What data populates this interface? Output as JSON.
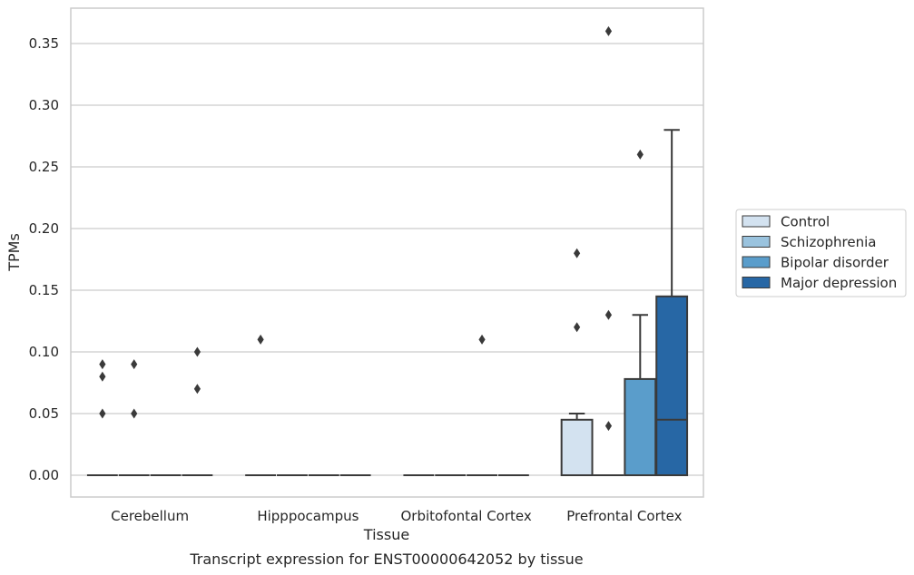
{
  "caption": "Transcript expression for ENST00000642052 by tissue",
  "chart_data": {
    "type": "box",
    "xlabel": "Tissue",
    "ylabel": "TPMs",
    "ylim": [
      -0.018,
      0.378
    ],
    "yticks": [
      "0.00",
      "0.05",
      "0.10",
      "0.15",
      "0.20",
      "0.25",
      "0.30",
      "0.35"
    ],
    "grid": "horizontal",
    "legend_position": "right",
    "categories": [
      "Cerebellum",
      "Hipppocampus",
      "Orbitofontal Cortex",
      "Prefrontal Cortex"
    ],
    "series": [
      {
        "name": "Control",
        "color": "#d3e2f0",
        "boxes": [
          {
            "q1": 0,
            "median": 0,
            "q3": 0,
            "whisker_low": 0,
            "whisker_high": 0,
            "outliers": [
              0.09,
              0.08,
              0.05
            ]
          },
          {
            "q1": 0,
            "median": 0,
            "q3": 0,
            "whisker_low": 0,
            "whisker_high": 0,
            "outliers": [
              0.11
            ]
          },
          {
            "q1": 0,
            "median": 0,
            "q3": 0,
            "whisker_low": 0,
            "whisker_high": 0,
            "outliers": []
          },
          {
            "q1": 0,
            "median": 0,
            "q3": 0.045,
            "whisker_low": 0,
            "whisker_high": 0.05,
            "outliers": [
              0.18,
              0.12
            ]
          }
        ]
      },
      {
        "name": "Schizophrenia",
        "color": "#9ac3de",
        "boxes": [
          {
            "q1": 0,
            "median": 0,
            "q3": 0,
            "whisker_low": 0,
            "whisker_high": 0,
            "outliers": [
              0.09,
              0.05
            ]
          },
          {
            "q1": 0,
            "median": 0,
            "q3": 0,
            "whisker_low": 0,
            "whisker_high": 0,
            "outliers": []
          },
          {
            "q1": 0,
            "median": 0,
            "q3": 0,
            "whisker_low": 0,
            "whisker_high": 0,
            "outliers": []
          },
          {
            "q1": 0,
            "median": 0,
            "q3": 0,
            "whisker_low": 0,
            "whisker_high": 0,
            "outliers": [
              0.36,
              0.13,
              0.04
            ]
          }
        ]
      },
      {
        "name": "Bipolar disorder",
        "color": "#5a9dcb",
        "boxes": [
          {
            "q1": 0,
            "median": 0,
            "q3": 0,
            "whisker_low": 0,
            "whisker_high": 0,
            "outliers": []
          },
          {
            "q1": 0,
            "median": 0,
            "q3": 0,
            "whisker_low": 0,
            "whisker_high": 0,
            "outliers": []
          },
          {
            "q1": 0,
            "median": 0,
            "q3": 0,
            "whisker_low": 0,
            "whisker_high": 0,
            "outliers": [
              0.11
            ]
          },
          {
            "q1": 0,
            "median": 0,
            "q3": 0.078,
            "whisker_low": 0,
            "whisker_high": 0.13,
            "outliers": [
              0.26
            ]
          }
        ]
      },
      {
        "name": "Major depression",
        "color": "#2767a5",
        "boxes": [
          {
            "q1": 0,
            "median": 0,
            "q3": 0,
            "whisker_low": 0,
            "whisker_high": 0,
            "outliers": [
              0.1,
              0.07
            ]
          },
          {
            "q1": 0,
            "median": 0,
            "q3": 0,
            "whisker_low": 0,
            "whisker_high": 0,
            "outliers": []
          },
          {
            "q1": 0,
            "median": 0,
            "q3": 0,
            "whisker_low": 0,
            "whisker_high": 0,
            "outliers": []
          },
          {
            "q1": 0,
            "median": 0.045,
            "q3": 0.145,
            "whisker_low": 0,
            "whisker_high": 0.28,
            "outliers": []
          }
        ]
      }
    ]
  }
}
